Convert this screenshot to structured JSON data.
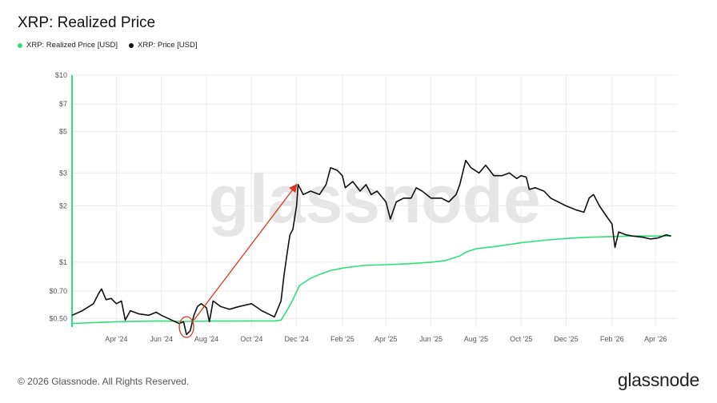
{
  "title": "XRP: Realized Price",
  "legend": [
    {
      "label": "XRP: Realized Price [USD]",
      "color": "#2ee07a"
    },
    {
      "label": "XRP: Price [USD]",
      "color": "#111111"
    }
  ],
  "watermark": "glassnode",
  "footer": "© 2026 Glassnode. All Rights Reserved.",
  "brand": "glassnode",
  "chart_data": {
    "type": "line",
    "yscale": "log",
    "ylim": [
      0.45,
      10
    ],
    "y_ticks": [
      {
        "v": 10,
        "label": "$10"
      },
      {
        "v": 7,
        "label": "$7"
      },
      {
        "v": 5,
        "label": "$5"
      },
      {
        "v": 3,
        "label": "$3"
      },
      {
        "v": 2,
        "label": "$2"
      },
      {
        "v": 1,
        "label": "$1"
      },
      {
        "v": 0.7,
        "label": "$0.70"
      },
      {
        "v": 0.5,
        "label": "$0.50"
      }
    ],
    "x_range": [
      "2024-02-01",
      "2026-04-30"
    ],
    "x_ticks": [
      {
        "date": "2024-04-01",
        "label": "Apr '24"
      },
      {
        "date": "2024-06-01",
        "label": "Jun '24"
      },
      {
        "date": "2024-08-01",
        "label": "Aug '24"
      },
      {
        "date": "2024-10-01",
        "label": "Oct '24"
      },
      {
        "date": "2024-12-01",
        "label": "Dec '24"
      },
      {
        "date": "2025-02-01",
        "label": "Feb '25"
      },
      {
        "date": "2025-04-01",
        "label": "Apr '25"
      },
      {
        "date": "2025-06-01",
        "label": "Jun '25"
      },
      {
        "date": "2025-08-01",
        "label": "Aug '25"
      },
      {
        "date": "2025-10-01",
        "label": "Oct '25"
      },
      {
        "date": "2025-12-01",
        "label": "Dec '25"
      },
      {
        "date": "2026-02-01",
        "label": "Feb '26"
      },
      {
        "date": "2026-04-01",
        "label": "Apr '26"
      }
    ],
    "grid": true,
    "series": [
      {
        "name": "XRP: Price [USD]",
        "color": "#111111",
        "points": [
          [
            "2024-02-01",
            0.52
          ],
          [
            "2024-02-15",
            0.55
          ],
          [
            "2024-03-01",
            0.6
          ],
          [
            "2024-03-08",
            0.68
          ],
          [
            "2024-03-12",
            0.72
          ],
          [
            "2024-03-18",
            0.63
          ],
          [
            "2024-03-25",
            0.64
          ],
          [
            "2024-04-01",
            0.6
          ],
          [
            "2024-04-08",
            0.62
          ],
          [
            "2024-04-13",
            0.49
          ],
          [
            "2024-04-20",
            0.55
          ],
          [
            "2024-05-01",
            0.53
          ],
          [
            "2024-05-15",
            0.52
          ],
          [
            "2024-05-25",
            0.54
          ],
          [
            "2024-06-01",
            0.52
          ],
          [
            "2024-06-15",
            0.49
          ],
          [
            "2024-06-25",
            0.47
          ],
          [
            "2024-07-01",
            0.48
          ],
          [
            "2024-07-05",
            0.41
          ],
          [
            "2024-07-10",
            0.43
          ],
          [
            "2024-07-15",
            0.52
          ],
          [
            "2024-07-20",
            0.58
          ],
          [
            "2024-07-25",
            0.6
          ],
          [
            "2024-08-01",
            0.57
          ],
          [
            "2024-08-05",
            0.48
          ],
          [
            "2024-08-10",
            0.62
          ],
          [
            "2024-08-20",
            0.58
          ],
          [
            "2024-09-01",
            0.56
          ],
          [
            "2024-09-15",
            0.58
          ],
          [
            "2024-10-01",
            0.6
          ],
          [
            "2024-10-15",
            0.55
          ],
          [
            "2024-11-01",
            0.51
          ],
          [
            "2024-11-10",
            0.62
          ],
          [
            "2024-11-14",
            0.85
          ],
          [
            "2024-11-18",
            1.1
          ],
          [
            "2024-11-22",
            1.4
          ],
          [
            "2024-11-26",
            1.5
          ],
          [
            "2024-12-01",
            2.0
          ],
          [
            "2024-12-03",
            2.6
          ],
          [
            "2024-12-10",
            2.3
          ],
          [
            "2024-12-20",
            2.4
          ],
          [
            "2025-01-01",
            2.3
          ],
          [
            "2025-01-10",
            2.6
          ],
          [
            "2025-01-16",
            3.2
          ],
          [
            "2025-01-25",
            3.1
          ],
          [
            "2025-02-01",
            2.9
          ],
          [
            "2025-02-05",
            2.5
          ],
          [
            "2025-02-15",
            2.7
          ],
          [
            "2025-02-25",
            2.4
          ],
          [
            "2025-03-05",
            2.6
          ],
          [
            "2025-03-12",
            2.3
          ],
          [
            "2025-03-20",
            2.4
          ],
          [
            "2025-04-01",
            2.1
          ],
          [
            "2025-04-07",
            1.7
          ],
          [
            "2025-04-15",
            2.1
          ],
          [
            "2025-04-25",
            2.2
          ],
          [
            "2025-05-05",
            2.2
          ],
          [
            "2025-05-12",
            2.5
          ],
          [
            "2025-05-20",
            2.4
          ],
          [
            "2025-06-01",
            2.2
          ],
          [
            "2025-06-15",
            2.2
          ],
          [
            "2025-06-25",
            2.1
          ],
          [
            "2025-07-05",
            2.3
          ],
          [
            "2025-07-10",
            2.6
          ],
          [
            "2025-07-18",
            3.5
          ],
          [
            "2025-07-25",
            3.2
          ],
          [
            "2025-08-05",
            3.0
          ],
          [
            "2025-08-14",
            3.3
          ],
          [
            "2025-08-25",
            2.9
          ],
          [
            "2025-09-05",
            2.9
          ],
          [
            "2025-09-15",
            3.0
          ],
          [
            "2025-09-25",
            2.8
          ],
          [
            "2025-10-01",
            2.9
          ],
          [
            "2025-10-08",
            2.85
          ],
          [
            "2025-10-12",
            2.45
          ],
          [
            "2025-10-20",
            2.5
          ],
          [
            "2025-11-01",
            2.4
          ],
          [
            "2025-11-10",
            2.2
          ],
          [
            "2025-11-20",
            2.1
          ],
          [
            "2025-12-01",
            2.0
          ],
          [
            "2025-12-15",
            1.9
          ],
          [
            "2025-12-25",
            1.85
          ],
          [
            "2026-01-01",
            2.2
          ],
          [
            "2026-01-07",
            2.3
          ],
          [
            "2026-01-15",
            2.0
          ],
          [
            "2026-01-25",
            1.75
          ],
          [
            "2026-02-01",
            1.6
          ],
          [
            "2026-02-05",
            1.2
          ],
          [
            "2026-02-10",
            1.45
          ],
          [
            "2026-02-20",
            1.4
          ],
          [
            "2026-03-01",
            1.38
          ],
          [
            "2026-03-15",
            1.36
          ],
          [
            "2026-03-25",
            1.33
          ],
          [
            "2026-04-05",
            1.35
          ],
          [
            "2026-04-15",
            1.4
          ],
          [
            "2026-04-22",
            1.38
          ]
        ]
      },
      {
        "name": "XRP: Realized Price [USD]",
        "color": "#2ee07a",
        "points": [
          [
            "2024-02-01",
            0.47
          ],
          [
            "2024-03-01",
            0.475
          ],
          [
            "2024-04-01",
            0.48
          ],
          [
            "2024-05-01",
            0.483
          ],
          [
            "2024-06-01",
            0.485
          ],
          [
            "2024-07-01",
            0.482
          ],
          [
            "2024-08-01",
            0.484
          ],
          [
            "2024-09-01",
            0.484
          ],
          [
            "2024-10-01",
            0.485
          ],
          [
            "2024-11-01",
            0.485
          ],
          [
            "2024-11-10",
            0.49
          ],
          [
            "2024-11-18",
            0.55
          ],
          [
            "2024-11-25",
            0.62
          ],
          [
            "2024-12-05",
            0.75
          ],
          [
            "2024-12-20",
            0.82
          ],
          [
            "2025-01-01",
            0.86
          ],
          [
            "2025-01-15",
            0.9
          ],
          [
            "2025-02-01",
            0.93
          ],
          [
            "2025-03-01",
            0.96
          ],
          [
            "2025-04-01",
            0.97
          ],
          [
            "2025-05-01",
            0.98
          ],
          [
            "2025-06-01",
            1.0
          ],
          [
            "2025-06-20",
            1.02
          ],
          [
            "2025-07-10",
            1.08
          ],
          [
            "2025-07-20",
            1.14
          ],
          [
            "2025-08-01",
            1.18
          ],
          [
            "2025-09-01",
            1.22
          ],
          [
            "2025-10-01",
            1.27
          ],
          [
            "2025-11-01",
            1.31
          ],
          [
            "2025-12-01",
            1.34
          ],
          [
            "2026-01-01",
            1.36
          ],
          [
            "2026-02-01",
            1.37
          ],
          [
            "2026-03-01",
            1.38
          ],
          [
            "2026-04-01",
            1.38
          ],
          [
            "2026-04-22",
            1.38
          ]
        ]
      }
    ],
    "annotations": [
      {
        "type": "circle",
        "date": "2024-07-05",
        "value": 0.45,
        "color": "#d9381e"
      },
      {
        "type": "arrow",
        "from": [
          "2024-07-15",
          0.49
        ],
        "to": [
          "2024-12-01",
          2.6
        ],
        "color": "#d9381e"
      }
    ]
  }
}
